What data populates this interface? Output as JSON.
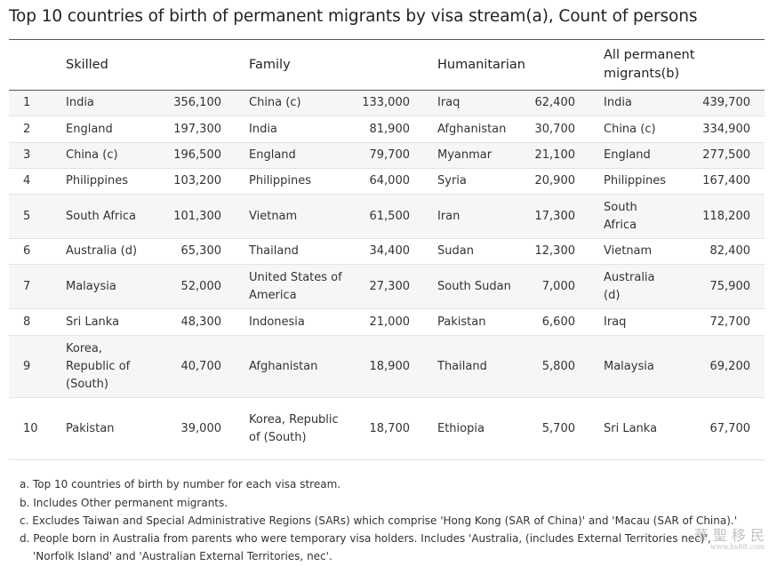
{
  "title": "Top 10 countries of birth of permanent migrants by visa stream(a), Count of persons",
  "headers": {
    "skilled": "Skilled",
    "family": "Family",
    "humanitarian": "Humanitarian",
    "all_line1": "All permanent",
    "all_line2": "migrants(b)"
  },
  "rows": [
    {
      "rank": "1",
      "skilled_c": "India",
      "skilled_n": "356,100",
      "family_c": "China (c)",
      "family_n": "133,000",
      "hum_c": "Iraq",
      "hum_n": "62,400",
      "all_c": "India",
      "all_n": "439,700"
    },
    {
      "rank": "2",
      "skilled_c": "England",
      "skilled_n": "197,300",
      "family_c": "India",
      "family_n": "81,900",
      "hum_c": "Afghanistan",
      "hum_n": "30,700",
      "all_c": "China (c)",
      "all_n": "334,900"
    },
    {
      "rank": "3",
      "skilled_c": "China (c)",
      "skilled_n": "196,500",
      "family_c": "England",
      "family_n": "79,700",
      "hum_c": "Myanmar",
      "hum_n": "21,100",
      "all_c": "England",
      "all_n": "277,500"
    },
    {
      "rank": "4",
      "skilled_c": "Philippines",
      "skilled_n": "103,200",
      "family_c": "Philippines",
      "family_n": "64,000",
      "hum_c": "Syria",
      "hum_n": "20,900",
      "all_c": "Philippines",
      "all_n": "167,400"
    },
    {
      "rank": "5",
      "skilled_c": "South Africa",
      "skilled_n": "101,300",
      "family_c": "Vietnam",
      "family_n": "61,500",
      "hum_c": "Iran",
      "hum_n": "17,300",
      "all_c": "South Africa",
      "all_n": "118,200"
    },
    {
      "rank": "6",
      "skilled_c": "Australia (d)",
      "skilled_n": "65,300",
      "family_c": "Thailand",
      "family_n": "34,400",
      "hum_c": "Sudan",
      "hum_n": "12,300",
      "all_c": "Vietnam",
      "all_n": "82,400"
    },
    {
      "rank": "7",
      "skilled_c": "Malaysia",
      "skilled_n": "52,000",
      "family_c": "United States of America",
      "family_n": "27,300",
      "hum_c": "South Sudan",
      "hum_n": "7,000",
      "all_c": "Australia (d)",
      "all_n": "75,900"
    },
    {
      "rank": "8",
      "skilled_c": "Sri Lanka",
      "skilled_n": "48,300",
      "family_c": "Indonesia",
      "family_n": "21,000",
      "hum_c": "Pakistan",
      "hum_n": "6,600",
      "all_c": "Iraq",
      "all_n": "72,700"
    },
    {
      "rank": "9",
      "skilled_c": "Korea, Republic of (South)",
      "skilled_n": "40,700",
      "family_c": "Afghanistan",
      "family_n": "18,900",
      "hum_c": "Thailand",
      "hum_n": "5,800",
      "all_c": "Malaysia",
      "all_n": "69,200"
    },
    {
      "rank": "10",
      "skilled_c": "Pakistan",
      "skilled_n": "39,000",
      "family_c": "Korea, Republic of (South)",
      "family_n": "18,700",
      "hum_c": "Ethiopia",
      "hum_n": "5,700",
      "all_c": "Sri Lanka",
      "all_n": "67,700"
    }
  ],
  "notes": {
    "a": "a. Top 10 countries of birth by number for each visa stream.",
    "b": "b. Includes Other permanent migrants.",
    "c": "c. Excludes Taiwan and Special Administrative Regions (SARs) which comprise 'Hong Kong (SAR of China)' and 'Macau (SAR of China).'",
    "d1": "d. People born in Australia from parents who were temporary visa holders. Includes 'Australia, (includes External Territories nec)',",
    "d2": "'Norfolk Island' and 'Australian External Territories, nec'."
  },
  "watermark": {
    "line1": "華 聖 移 民",
    "line2": "www.hs88.com"
  }
}
